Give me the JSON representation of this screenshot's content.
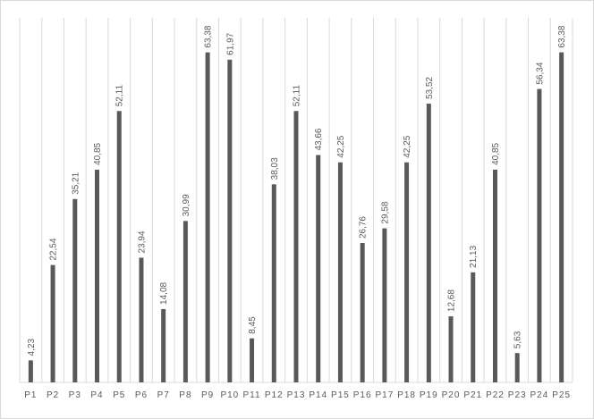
{
  "chart_data": {
    "type": "bar",
    "categories": [
      "P1",
      "P2",
      "P3",
      "P4",
      "P5",
      "P6",
      "P7",
      "P8",
      "P9",
      "P10",
      "P11",
      "P12",
      "P13",
      "P14",
      "P15",
      "P16",
      "P17",
      "P18",
      "P19",
      "P20",
      "P21",
      "P22",
      "P23",
      "P24",
      "P25"
    ],
    "values": [
      4.23,
      22.54,
      35.21,
      40.85,
      52.11,
      23.94,
      14.08,
      30.99,
      63.38,
      61.97,
      8.45,
      38.03,
      52.11,
      43.66,
      42.25,
      26.76,
      29.58,
      42.25,
      53.52,
      12.68,
      21.13,
      40.85,
      5.63,
      56.34,
      63.38
    ],
    "value_labels": [
      "4,23",
      "22,54",
      "35,21",
      "40,85",
      "52,11",
      "23,94",
      "14,08",
      "30,99",
      "63,38",
      "61,97",
      "8,45",
      "38,03",
      "52,11",
      "43,66",
      "42,25",
      "26,76",
      "29,58",
      "42,25",
      "53,52",
      "12,68",
      "21,13",
      "40,85",
      "5,63",
      "56,34",
      "63,38"
    ],
    "color": "#595959",
    "ylim": [
      0,
      70
    ]
  }
}
